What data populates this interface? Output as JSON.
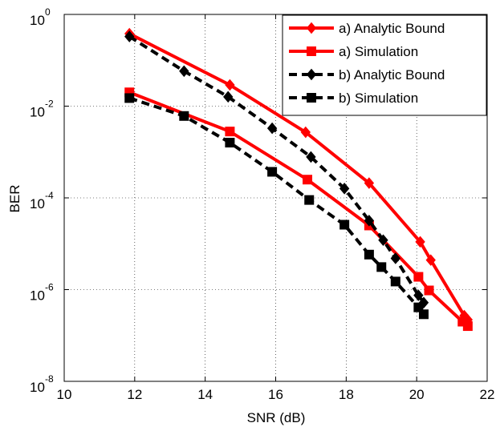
{
  "chart_data": {
    "type": "line",
    "title": "",
    "xlabel": "SNR (dB)",
    "ylabel": "BER",
    "xlim": [
      10,
      22
    ],
    "ylim": [
      1e-08,
      1
    ],
    "yscale": "log",
    "grid": true,
    "legend_position": "top-right",
    "xticks": [
      10,
      12,
      14,
      16,
      18,
      20,
      22
    ],
    "xtick_labels": [
      "10",
      "12",
      "14",
      "16",
      "18",
      "20",
      "22"
    ],
    "yticks": [
      {
        "value": 1,
        "base": "10",
        "exp": "0"
      },
      {
        "value": 0.01,
        "base": "10",
        "exp": "-2"
      },
      {
        "value": 0.0001,
        "base": "10",
        "exp": "-4"
      },
      {
        "value": 1e-06,
        "base": "10",
        "exp": "-6"
      },
      {
        "value": 1e-08,
        "base": "10",
        "exp": "-8"
      }
    ],
    "series": [
      {
        "name": "a) Analytic Bound",
        "color": "#ff0000",
        "line": "solid",
        "marker": "diamond",
        "x": [
          11.85,
          14.7,
          16.85,
          18.65,
          20.1,
          20.4,
          21.35,
          21.45
        ],
        "y": [
          0.38,
          0.029,
          0.0027,
          0.00021,
          1.1e-05,
          4.4e-06,
          2.7e-07,
          2.2e-07
        ]
      },
      {
        "name": "a) Simulation",
        "color": "#ff0000",
        "line": "solid",
        "marker": "square",
        "x": [
          11.85,
          14.7,
          16.9,
          18.65,
          20.05,
          20.35,
          21.3,
          21.45
        ],
        "y": [
          0.02,
          0.0028,
          0.00025,
          2.5e-05,
          1.9e-06,
          9.6e-07,
          2e-07,
          1.6e-07
        ]
      },
      {
        "name": "b) Analytic Bound",
        "color": "#000000",
        "line": "dashed",
        "marker": "diamond",
        "x": [
          11.85,
          13.4,
          14.65,
          15.9,
          17.0,
          17.95,
          18.65,
          19.05,
          19.4,
          20.05,
          20.2
        ],
        "y": [
          0.33,
          0.058,
          0.016,
          0.0033,
          0.00078,
          0.00016,
          3.2e-05,
          1.2e-05,
          4.8e-06,
          7.5e-07,
          5.2e-07
        ]
      },
      {
        "name": "b) Simulation",
        "color": "#000000",
        "line": "dashed",
        "marker": "square",
        "x": [
          11.85,
          13.4,
          14.7,
          15.9,
          16.95,
          17.95,
          18.65,
          19.0,
          19.4,
          20.05,
          20.2
        ],
        "y": [
          0.015,
          0.0061,
          0.0016,
          0.00037,
          9e-05,
          2.6e-05,
          5.8e-06,
          3.1e-06,
          1.5e-06,
          4.1e-07,
          2.9e-07
        ]
      }
    ]
  }
}
